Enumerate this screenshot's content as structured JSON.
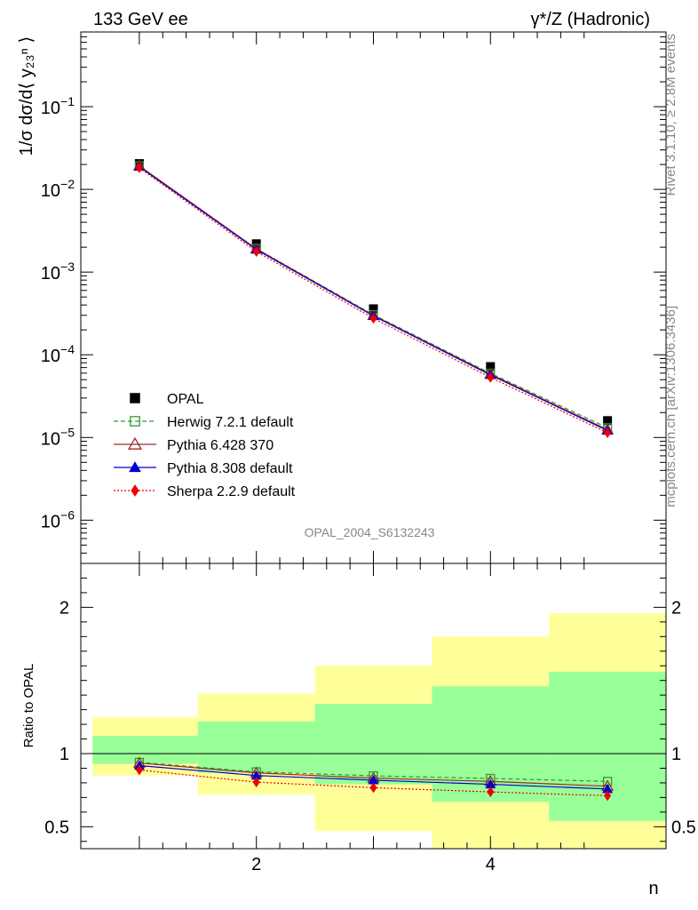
{
  "header": {
    "left_title": "133 GeV ee",
    "right_title": "γ*/Z (Hadronic)"
  },
  "side_labels": {
    "rivet": "Rivet 3.1.10, ≥ 2.8M events",
    "mcplots": "mcplots.cern.ch [arXiv:1306.3436]"
  },
  "watermark": "OPAL_2004_S6132243",
  "chart_data": [
    {
      "type": "line",
      "name": "main",
      "ylabel": "1/σ dσ/d⟨ y₂₃ⁿ ⟩",
      "yscale": "log",
      "xlim": [
        0.5,
        5.5
      ],
      "ylim": [
        3e-07,
        0.8
      ],
      "x": [
        1,
        2,
        3,
        4,
        5
      ],
      "yticks": [
        {
          "v": 1e-06,
          "base": "10",
          "exp": "−6"
        },
        {
          "v": 1e-05,
          "base": "10",
          "exp": "−5"
        },
        {
          "v": 0.0001,
          "base": "10",
          "exp": "−4"
        },
        {
          "v": 0.001,
          "base": "10",
          "exp": "−3"
        },
        {
          "v": 0.01,
          "base": "10",
          "exp": "−2"
        },
        {
          "v": 0.1,
          "base": "10",
          "exp": "−1"
        }
      ],
      "legend_position": "bottom-left",
      "series": [
        {
          "name": "OPAL",
          "values": [
            0.0205,
            0.0022,
            0.00036,
            7.2e-05,
            1.6e-05
          ],
          "color": "#000000",
          "marker": "square-filled",
          "line": "none"
        },
        {
          "name": "Herwig 7.2.1 default",
          "values": [
            0.0192,
            0.00192,
            0.000305,
            5.97e-05,
            1.31e-05
          ],
          "color": "#339933",
          "marker": "square-open",
          "line": "dashed"
        },
        {
          "name": "Pythia 6.428 370",
          "values": [
            0.0192,
            0.00191,
            0.000299,
            5.83e-05,
            1.24e-05
          ],
          "color": "#a0282d",
          "marker": "triangle-open",
          "line": "solid"
        },
        {
          "name": "Pythia 8.308 default",
          "values": [
            0.0188,
            0.00187,
            0.000295,
            5.69e-05,
            1.21e-05
          ],
          "color": "#0000cc",
          "marker": "triangle-filled",
          "line": "solid"
        },
        {
          "name": "Sherpa 2.2.9 default",
          "values": [
            0.0182,
            0.00177,
            0.000276,
            5.32e-05,
            1.14e-05
          ],
          "color": "#ee0000",
          "marker": "diamond-filled",
          "line": "dotted"
        }
      ]
    },
    {
      "type": "line",
      "name": "ratio",
      "ylabel": "Ratio to OPAL",
      "xlabel": "n",
      "xlim": [
        0.5,
        5.5
      ],
      "ylim": [
        0.35,
        2.3
      ],
      "xticks": [
        2,
        4
      ],
      "yticks": [
        0.5,
        1,
        2
      ],
      "reference_line": 1,
      "bands": [
        {
          "x0": 0.6,
          "x1": 1.5,
          "yellow": [
            0.85,
            1.25
          ],
          "green": [
            0.93,
            1.12
          ]
        },
        {
          "x0": 1.5,
          "x1": 2.5,
          "yellow": [
            0.72,
            1.41
          ],
          "green": [
            0.87,
            1.22
          ]
        },
        {
          "x0": 2.5,
          "x1": 3.5,
          "yellow": [
            0.47,
            1.6
          ],
          "green": [
            0.79,
            1.34
          ]
        },
        {
          "x0": 3.5,
          "x1": 4.5,
          "yellow": [
            0.3,
            1.8
          ],
          "green": [
            0.67,
            1.46
          ]
        },
        {
          "x0": 4.5,
          "x1": 5.5,
          "yellow": [
            0.3,
            1.96
          ],
          "green": [
            0.54,
            1.56
          ]
        }
      ],
      "band_colors": {
        "yellow": "#ffff99",
        "green": "#99ff99"
      },
      "series": [
        {
          "name": "Herwig 7.2.1 default",
          "values": [
            0.94,
            0.875,
            0.848,
            0.83,
            0.81
          ],
          "color": "#339933",
          "marker": "square-open",
          "line": "dashed"
        },
        {
          "name": "Pythia 6.428 370",
          "values": [
            0.935,
            0.868,
            0.832,
            0.81,
            0.777
          ],
          "color": "#a0282d",
          "marker": "triangle-open",
          "line": "solid"
        },
        {
          "name": "Pythia 8.308 default",
          "values": [
            0.918,
            0.85,
            0.818,
            0.79,
            0.758
          ],
          "color": "#0000cc",
          "marker": "triangle-filled",
          "line": "solid"
        },
        {
          "name": "Sherpa 2.2.9 default",
          "values": [
            0.888,
            0.805,
            0.767,
            0.738,
            0.712
          ],
          "color": "#ee0000",
          "marker": "diamond-filled",
          "line": "dotted"
        }
      ]
    }
  ]
}
